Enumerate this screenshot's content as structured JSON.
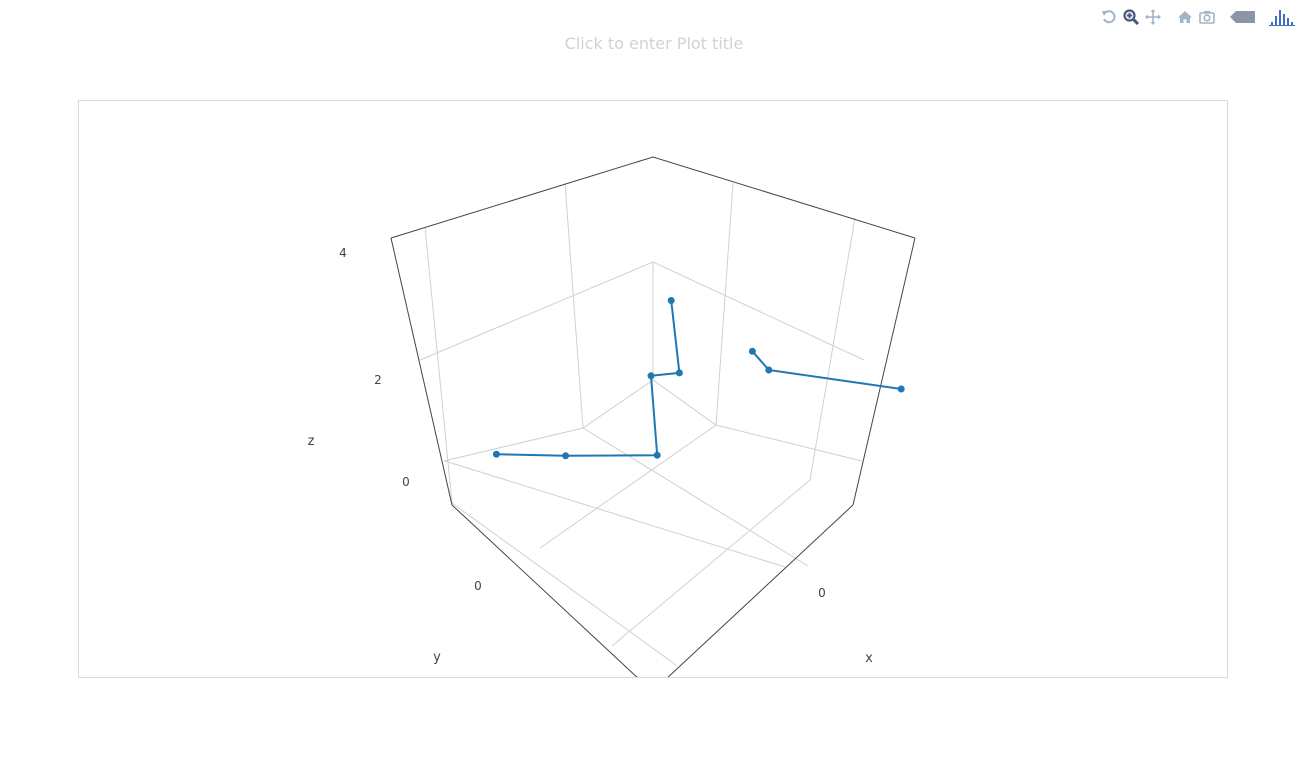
{
  "plot": {
    "title_placeholder": "Click to enter Plot title"
  },
  "modebar": {
    "buttons": [
      {
        "name": "reset-camera-last-save",
        "icon": "undo-icon"
      },
      {
        "name": "zoom",
        "icon": "zoom-icon"
      },
      {
        "name": "pan",
        "icon": "pan-icon"
      },
      {
        "name": "reset-camera-default",
        "icon": "home-icon"
      },
      {
        "name": "download-plot",
        "icon": "camera-icon"
      },
      {
        "name": "toggle-hover",
        "icon": "tag-icon"
      },
      {
        "name": "plotly-logo",
        "icon": "plotly-logo-icon"
      }
    ],
    "icon_color": "#a3b4c6",
    "active_color": "#445a7a",
    "logo_color": "#3f6ec4"
  },
  "chart_data": {
    "type": "scatter3d",
    "mode": "lines+markers",
    "color": "#1f77b4",
    "series": [
      {
        "values": [
          {
            "x": -2.4,
            "y": 0.2,
            "z": 0.0
          },
          {
            "x": -1.6,
            "y": -0.2,
            "z": 0.0
          },
          {
            "x": -0.6,
            "y": -0.8,
            "z": 0.0
          },
          {
            "x": -0.2,
            "y": -0.2,
            "z": 2.0
          },
          {
            "x": 0.6,
            "y": 0.2,
            "z": 2.5
          },
          {
            "x": 0.8,
            "y": 0.6,
            "z": 4.2
          }
        ]
      },
      {
        "values": [
          {
            "x": 3.4,
            "y": -0.8,
            "z": 2.5
          },
          {
            "x": 2.4,
            "y": 0.6,
            "z": 3.3
          },
          {
            "x": 2.8,
            "y": 1.4,
            "z": 4.2
          }
        ]
      }
    ],
    "axes": {
      "x": {
        "label": "x",
        "ticks": [
          "0"
        ]
      },
      "y": {
        "label": "y",
        "ticks": [
          "0"
        ]
      },
      "z": {
        "label": "z",
        "ticks": [
          "0",
          "2",
          "4"
        ]
      }
    },
    "grid": true
  }
}
